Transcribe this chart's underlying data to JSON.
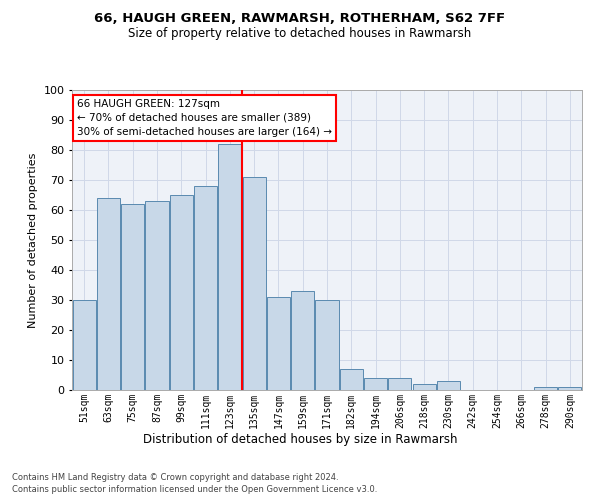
{
  "title1": "66, HAUGH GREEN, RAWMARSH, ROTHERHAM, S62 7FF",
  "title2": "Size of property relative to detached houses in Rawmarsh",
  "xlabel": "Distribution of detached houses by size in Rawmarsh",
  "ylabel": "Number of detached properties",
  "categories": [
    "51sqm",
    "63sqm",
    "75sqm",
    "87sqm",
    "99sqm",
    "111sqm",
    "123sqm",
    "135sqm",
    "147sqm",
    "159sqm",
    "171sqm",
    "182sqm",
    "194sqm",
    "206sqm",
    "218sqm",
    "230sqm",
    "242sqm",
    "254sqm",
    "266sqm",
    "278sqm",
    "290sqm"
  ],
  "values": [
    30,
    64,
    62,
    63,
    65,
    68,
    82,
    71,
    31,
    33,
    30,
    7,
    4,
    4,
    2,
    3,
    0,
    0,
    0,
    1,
    1
  ],
  "bar_color": "#c8d8e8",
  "bar_edge_color": "#5a8ab0",
  "grid_color": "#d0d8e8",
  "background_color": "#eef2f8",
  "vline_x": 6.5,
  "vline_color": "red",
  "annotation_text": "66 HAUGH GREEN: 127sqm\n← 70% of detached houses are smaller (389)\n30% of semi-detached houses are larger (164) →",
  "annotation_box_color": "white",
  "annotation_box_edge_color": "red",
  "ylim": [
    0,
    100
  ],
  "footer1": "Contains HM Land Registry data © Crown copyright and database right 2024.",
  "footer2": "Contains public sector information licensed under the Open Government Licence v3.0."
}
